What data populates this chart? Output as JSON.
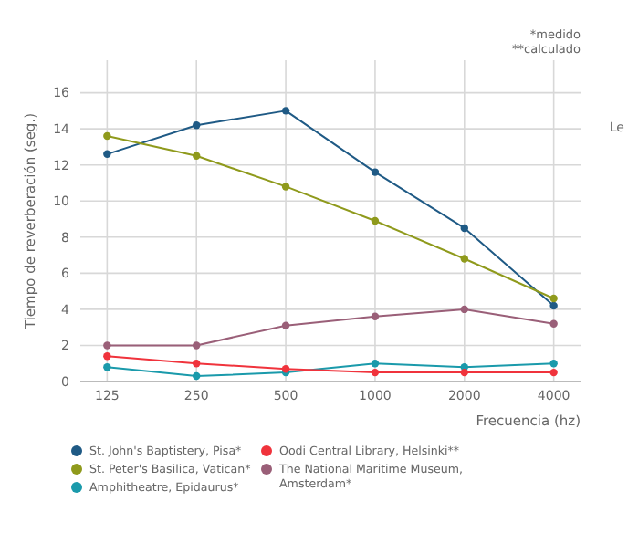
{
  "chart_data": {
    "type": "line",
    "xlabel": "Frecuencia (hz)",
    "ylabel": "Tiempo de reverberación (seg.)",
    "categories": [
      "125",
      "250",
      "500",
      "1000",
      "2000",
      "4000"
    ],
    "series": [
      {
        "name": "St. John's Baptistery, Pisa*",
        "color": "#1f5a85",
        "values": [
          12.6,
          14.2,
          15.0,
          11.6,
          8.5,
          4.2
        ]
      },
      {
        "name": "St. Peter's Basilica, Vatican*",
        "color": "#8f9a1c",
        "values": [
          13.6,
          12.5,
          10.8,
          8.9,
          6.8,
          4.6
        ]
      },
      {
        "name": "Amphitheatre, Epidaurus*",
        "color": "#1a9aab",
        "values": [
          0.8,
          0.3,
          0.5,
          1.0,
          0.8,
          1.0
        ]
      },
      {
        "name": "Oodi Central Library, Helsinki**",
        "color": "#f0333c",
        "values": [
          1.4,
          1.0,
          0.7,
          0.5,
          0.5,
          0.5
        ]
      },
      {
        "name": "The National Maritime Museum, Amsterdam*",
        "color": "#9a5f78",
        "values": [
          2.0,
          2.0,
          3.1,
          3.6,
          4.0,
          3.2
        ]
      }
    ],
    "ylim": [
      0,
      17.8
    ],
    "yticks": [
      0,
      2,
      4,
      6,
      8,
      10,
      12,
      14,
      16
    ],
    "grid": true,
    "legend": "bottom",
    "marker": "circle",
    "annotations": [
      "*medido",
      "**calculado",
      "Le"
    ]
  }
}
